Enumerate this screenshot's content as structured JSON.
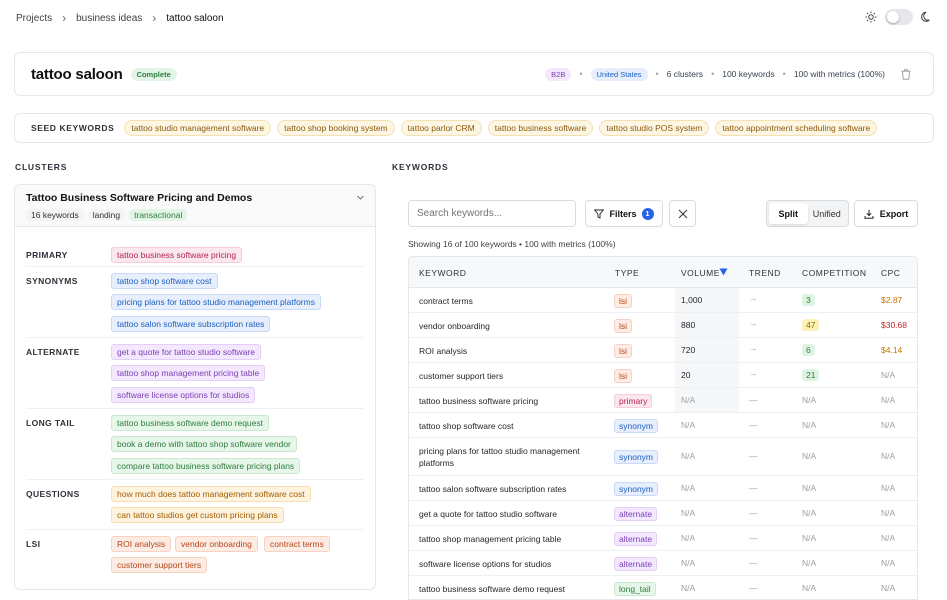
{
  "breadcrumb": [
    "Projects",
    "business ideas",
    "tattoo saloon"
  ],
  "project": {
    "title": "tattoo saloon",
    "status": "Complete",
    "segment": "B2B",
    "country": "United States",
    "clusters": "6 clusters",
    "keywords": "100 keywords",
    "metrics": "100 with metrics (100%)"
  },
  "seed": {
    "label": "SEED KEYWORDS",
    "items": [
      "tattoo studio management software",
      "tattoo shop booking system",
      "tattoo parlor CRM",
      "tattoo business software",
      "tattoo studio POS system",
      "tattoo appointment scheduling software"
    ]
  },
  "sections": {
    "clusters": "CLUSTERS",
    "keywords": "KEYWORDS"
  },
  "cluster": {
    "title": "Tattoo Business Software Pricing and Demos",
    "tags": [
      "16 keywords",
      "landing",
      "transactional"
    ],
    "groups": [
      {
        "label": "PRIMARY",
        "items": [
          "tattoo business software pricing"
        ]
      },
      {
        "label": "SYNONYMS",
        "items": [
          "tattoo shop software cost",
          "pricing plans for tattoo studio management platforms",
          "tattoo salon software subscription rates"
        ]
      },
      {
        "label": "ALTERNATE",
        "items": [
          "get a quote for tattoo studio software",
          "tattoo shop management pricing table",
          "software license options for studios"
        ]
      },
      {
        "label": "LONG TAIL",
        "items": [
          "tattoo business software demo request",
          "book a demo with tattoo shop software vendor",
          "compare tattoo business software pricing plans"
        ]
      },
      {
        "label": "QUESTIONS",
        "items": [
          "how much does tattoo management software cost",
          "can tattoo studios get custom pricing plans"
        ]
      },
      {
        "label": "LSI",
        "items": [
          "ROI analysis",
          "vendor onboarding",
          "contract terms",
          "customer support tiers"
        ]
      }
    ]
  },
  "toolbar": {
    "search_placeholder": "Search keywords...",
    "filters_label": "Filters",
    "filters_count": "1",
    "split_label": "Split",
    "unified_label": "Unified",
    "export_label": "Export"
  },
  "showing": "Showing 16 of 100 keywords • 100 with metrics (100%)",
  "table": {
    "columns": [
      "KEYWORD",
      "TYPE",
      "VOLUME",
      "TREND",
      "COMPETITION",
      "CPC"
    ],
    "rows": [
      {
        "keyword": "contract terms",
        "type": "lsi",
        "volume": "1,000",
        "trend": "→",
        "competition": "3",
        "cpc": "$2.87"
      },
      {
        "keyword": "vendor onboarding",
        "type": "lsi",
        "volume": "880",
        "trend": "→",
        "competition": "47",
        "cpc": "$30.68"
      },
      {
        "keyword": "ROI analysis",
        "type": "lsi",
        "volume": "720",
        "trend": "→",
        "competition": "6",
        "cpc": "$4.14"
      },
      {
        "keyword": "customer support tiers",
        "type": "lsi",
        "volume": "20",
        "trend": "→",
        "competition": "21",
        "cpc": "N/A"
      },
      {
        "keyword": "tattoo business software pricing",
        "type": "primary",
        "volume": "N/A",
        "trend": "—",
        "competition": "N/A",
        "cpc": "N/A"
      },
      {
        "keyword": "tattoo shop software cost",
        "type": "synonym",
        "volume": "N/A",
        "trend": "—",
        "competition": "N/A",
        "cpc": "N/A"
      },
      {
        "keyword": "pricing plans for tattoo studio management platforms",
        "type": "synonym",
        "volume": "N/A",
        "trend": "—",
        "competition": "N/A",
        "cpc": "N/A"
      },
      {
        "keyword": "tattoo salon software subscription rates",
        "type": "synonym",
        "volume": "N/A",
        "trend": "—",
        "competition": "N/A",
        "cpc": "N/A"
      },
      {
        "keyword": "get a quote for tattoo studio software",
        "type": "alternate",
        "volume": "N/A",
        "trend": "—",
        "competition": "N/A",
        "cpc": "N/A"
      },
      {
        "keyword": "tattoo shop management pricing table",
        "type": "alternate",
        "volume": "N/A",
        "trend": "—",
        "competition": "N/A",
        "cpc": "N/A"
      },
      {
        "keyword": "software license options for studios",
        "type": "alternate",
        "volume": "N/A",
        "trend": "—",
        "competition": "N/A",
        "cpc": "N/A"
      },
      {
        "keyword": "tattoo business software demo request",
        "type": "long_tail",
        "volume": "N/A",
        "trend": "—",
        "competition": "N/A",
        "cpc": "N/A"
      }
    ]
  },
  "colors": {
    "accent": "#2563eb",
    "sort_arrow": "#2563eb"
  },
  "icons": [
    "chevron-right-icon",
    "sun-icon",
    "moon-icon",
    "trash-icon",
    "chevron-down-icon",
    "filter-icon",
    "close-icon",
    "download-icon",
    "sort-desc-icon"
  ]
}
